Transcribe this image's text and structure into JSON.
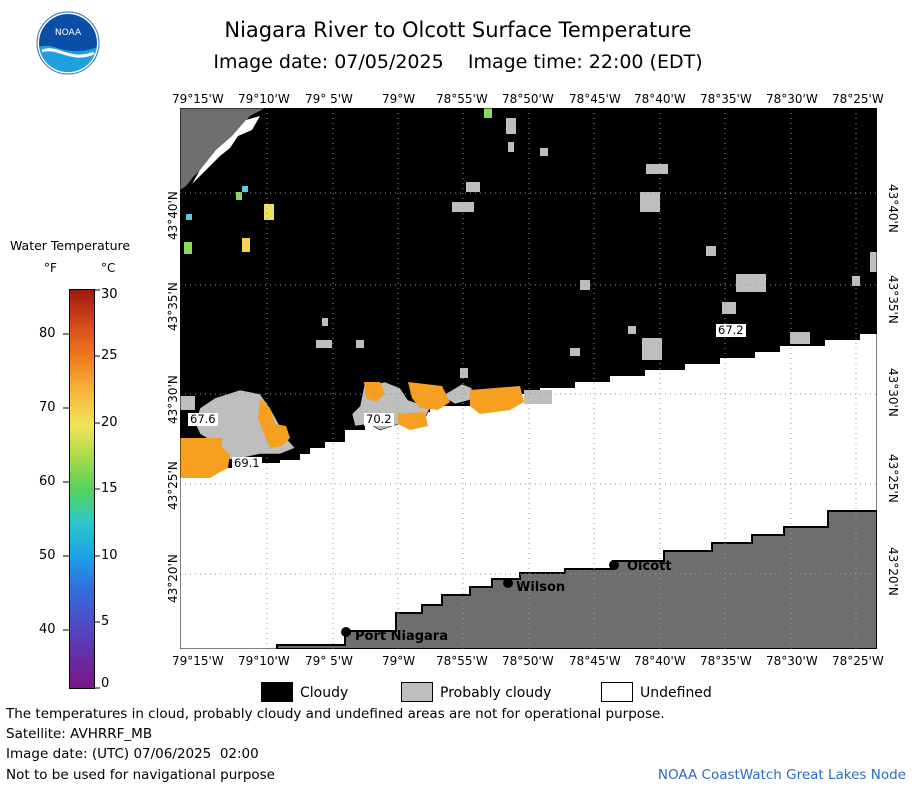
{
  "header": {
    "title": "Niagara River to Olcott Surface Temperature",
    "subtitle": "Image date: 07/05/2025    Image time: 22:00 (EDT)"
  },
  "logo": {
    "text": "NOAA",
    "icon": "noaa-logo-icon"
  },
  "map": {
    "lon_labels": [
      "79°15'W",
      "79°10'W",
      "79° 5'W",
      "79°W",
      "78°55'W",
      "78°50'W",
      "78°45'W",
      "78°40'W",
      "78°35'W",
      "78°30'W",
      "78°25'W"
    ],
    "lat_labels": [
      "43°40'N",
      "43°35'N",
      "43°30'N",
      "43°25'N",
      "43°20'N"
    ],
    "places": [
      "Olcott",
      "Wilson",
      "Port Niagara"
    ],
    "temperature_labels": [
      "67.6",
      "70.2",
      "69.1",
      "67.2"
    ],
    "colors": {
      "cloudy": "#000000",
      "probably_cloudy": "#bebebe",
      "land": "#6e6e6e",
      "undefined": "#ffffff"
    }
  },
  "colorbar": {
    "title": "Water Temperature",
    "unit_f": "°F",
    "unit_c": "°C",
    "ticks_f": [
      "80",
      "70",
      "60",
      "50",
      "40"
    ],
    "ticks_c": [
      "30",
      "25",
      "20",
      "15",
      "10",
      "5",
      "0"
    ],
    "range_c": [
      0,
      30
    ],
    "range_f": [
      32,
      86
    ]
  },
  "legend": [
    {
      "label": "Cloudy",
      "color": "#000000"
    },
    {
      "label": "Probably cloudy",
      "color": "#bebebe"
    },
    {
      "label": "Undefined",
      "color": "#ffffff"
    }
  ],
  "footer": {
    "line1": "The temperatures in cloud, probably cloudy and undefined areas are not for operational purpose.",
    "line2": "Satellite: AVHRRF_MB",
    "line3": "Image date: (UTC) 07/06/2025  02:00",
    "line4": "Not to be used for navigational purpose",
    "credit": "NOAA CoastWatch Great Lakes Node"
  }
}
